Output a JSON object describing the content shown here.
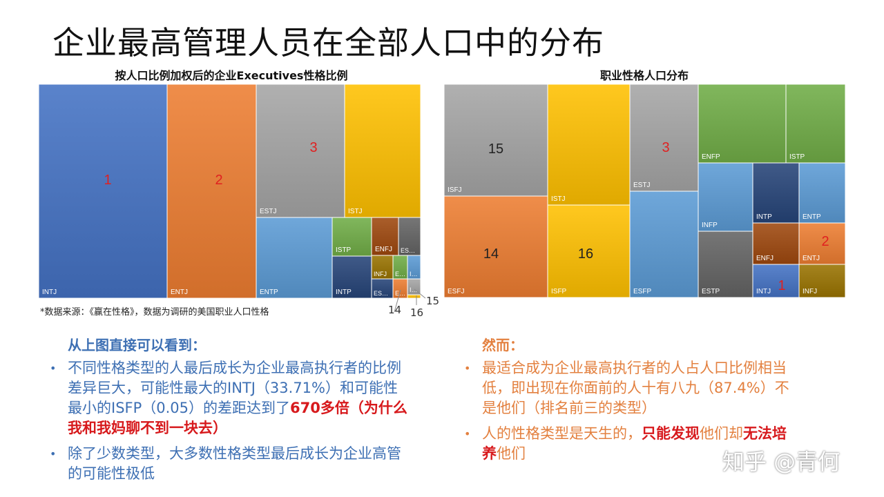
{
  "page_title": "企业最高管理人员在全部人口中的分布",
  "left_chart": {
    "title": "按人口比例加权后的企业Executives性格比例",
    "callouts": [
      "14",
      "15",
      "16"
    ]
  },
  "right_chart": {
    "title": "职业性格人口分布"
  },
  "source_note": "*数据来源：《赢在性格》，数据为调研的美国职业人口性格",
  "left_section": {
    "heading": "从上图直接可以看到：",
    "bullet1": {
      "text": "不同性格类型的人最后成长为企业最高执行者的比例差异巨大，可能性最大的INTJ（33.71%）和可能性最小的ISFP（0.05）的差距达到了",
      "highlight": "670多倍（为什么我和我妈聊不到一块去）"
    },
    "bullet2": "除了少数类型，大多数性格类型最后成长为企业高管的可能性极低"
  },
  "right_section": {
    "heading": "然而：",
    "bullet1": "最适合成为企业最高执行者的人占人口比例相当低，即出现在你面前的人十有八九（87.4%）不是他们（排名前三的类型）",
    "bullet2": {
      "pre": "人的性格类型是天生的，",
      "hl1": "只能发现",
      "mid": "他们却",
      "hl2": "无法培养",
      "post": "他们"
    }
  },
  "watermark": "知乎 @青何",
  "colors": {
    "blue": "#4472c4",
    "orange": "#ed7d31",
    "gray": "#a5a5a5",
    "gold": "#ffc000",
    "lightblue": "#5b9bd5",
    "green": "#70ad47",
    "navy": "#264478",
    "brown": "#9e480e",
    "darkgray": "#636363",
    "olive": "#997300",
    "accent_text_blue": "#3d6fb3",
    "accent_text_orange": "#e3803f",
    "highlight_red": "#d7191c",
    "rank_red": "#e02020"
  },
  "chart_data": [
    {
      "type": "treemap",
      "title": "按人口比例加权后的企业Executives性格比例",
      "items": [
        {
          "label": "INTJ",
          "value": 33.71,
          "rank": "1",
          "color": "blue"
        },
        {
          "label": "ENTJ",
          "value": 20.5,
          "rank": "2",
          "color": "orange"
        },
        {
          "label": "ESTJ",
          "value": 11.3,
          "rank": "3",
          "color": "gray"
        },
        {
          "label": "ISTJ",
          "value": 10.0,
          "color": "gold"
        },
        {
          "label": "ENTP",
          "value": 6.6,
          "color": "lightblue"
        },
        {
          "label": "ISTP",
          "value": 2.6,
          "color": "green"
        },
        {
          "label": "INTP",
          "value": 2.3,
          "color": "navy"
        },
        {
          "label": "ENFJ",
          "value": 2.1,
          "color": "brown"
        },
        {
          "label": "ES…",
          "value": 2.0,
          "color": "darkgray"
        },
        {
          "label": "INFJ",
          "value": 1.2,
          "color": "olive"
        },
        {
          "label": "E…",
          "value": 1.0,
          "color": "green"
        },
        {
          "label": "I…",
          "value": 0.9,
          "color": "lightblue"
        },
        {
          "label": "ES…",
          "value": 0.9,
          "color": "navy"
        },
        {
          "label": "E…",
          "value": 0.6,
          "color": "orange",
          "callout": "14"
        },
        {
          "label": "I…",
          "value": 0.3,
          "color": "gray",
          "callout": "15"
        },
        {
          "label": "",
          "value": 0.05,
          "color": "gold",
          "callout": "16"
        }
      ]
    },
    {
      "type": "treemap",
      "title": "职业性格人口分布",
      "items": [
        {
          "label": "ISFJ",
          "value": 13.8,
          "rank": "15",
          "color": "gray"
        },
        {
          "label": "ESFJ",
          "value": 12.3,
          "rank": "14",
          "color": "orange"
        },
        {
          "label": "ISTJ",
          "value": 11.6,
          "color": "gold"
        },
        {
          "label": "ISFP",
          "value": 8.8,
          "rank": "16",
          "color": "gold"
        },
        {
          "label": "ESTJ",
          "value": 8.7,
          "rank": "3",
          "color": "gray"
        },
        {
          "label": "ESFP",
          "value": 8.5,
          "color": "lightblue"
        },
        {
          "label": "ENFP",
          "value": 8.1,
          "color": "green"
        },
        {
          "label": "ISTP",
          "value": 5.4,
          "color": "green"
        },
        {
          "label": "INFP",
          "value": 4.4,
          "color": "lightblue"
        },
        {
          "label": "ESTP",
          "value": 4.3,
          "color": "darkgray"
        },
        {
          "label": "INTP",
          "value": 3.3,
          "color": "navy"
        },
        {
          "label": "ENTP",
          "value": 3.2,
          "color": "lightblue"
        },
        {
          "label": "ENFJ",
          "value": 2.5,
          "color": "brown"
        },
        {
          "label": "INTJ",
          "value": 2.1,
          "rank": "1",
          "color": "blue"
        },
        {
          "label": "ENTJ",
          "value": 1.8,
          "rank": "2",
          "color": "orange"
        },
        {
          "label": "INFJ",
          "value": 1.5,
          "color": "olive"
        }
      ]
    }
  ]
}
